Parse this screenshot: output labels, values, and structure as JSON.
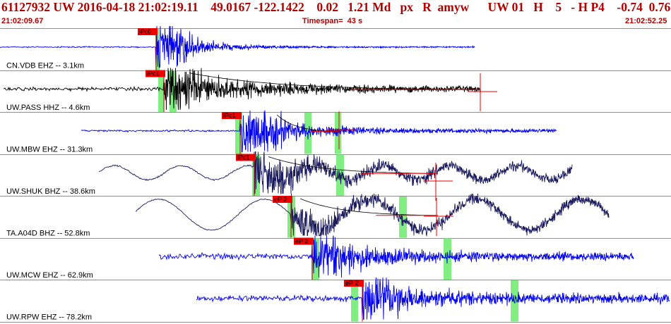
{
  "header": {
    "event_line": "61127932 UW 2016-04-18 21:02:19.11    49.0167 -122.1422    0.02   1.21 Md   px   R  amyw      UW 01   H    5   - H P4    -0.74  0.76",
    "start_time": "21:02:09.67",
    "timespan": "Timespan=  43 s",
    "end_time": "21:02:52.25"
  },
  "colors": {
    "header_text": "#b00000",
    "trace_blue": "#0000ee",
    "trace_black": "#000000",
    "trace_navy": "#1a1a5e",
    "pick_box": "#ee0000",
    "green_window": "#80ee80",
    "coda_red": "#ee0000"
  },
  "panels": [
    {
      "label": "CN.VDB EHZ -- 3.1km",
      "pick": "iPc0",
      "color_key": "trace_blue"
    },
    {
      "label": "UW.PASS HHZ -- 4.6km",
      "pick": "iPc1",
      "color_key": "trace_black"
    },
    {
      "label": "UW.MBW EHZ -- 31.3km",
      "pick": "iPc1",
      "color_key": "trace_blue"
    },
    {
      "label": "UW.SHUK BHZ -- 38.6km",
      "pick": "iPc1",
      "color_key": "trace_navy"
    },
    {
      "label": "TA.A04D BHZ -- 52.8km",
      "pick": "eP 2",
      "color_key": "trace_navy"
    },
    {
      "label": "UW.MCW EHZ -- 62.9km",
      "pick": "eP 2",
      "color_key": "trace_blue"
    },
    {
      "label": "UW.RPW EHZ -- 78.2km",
      "pick": "eP 2",
      "color_key": "trace_blue"
    }
  ]
}
